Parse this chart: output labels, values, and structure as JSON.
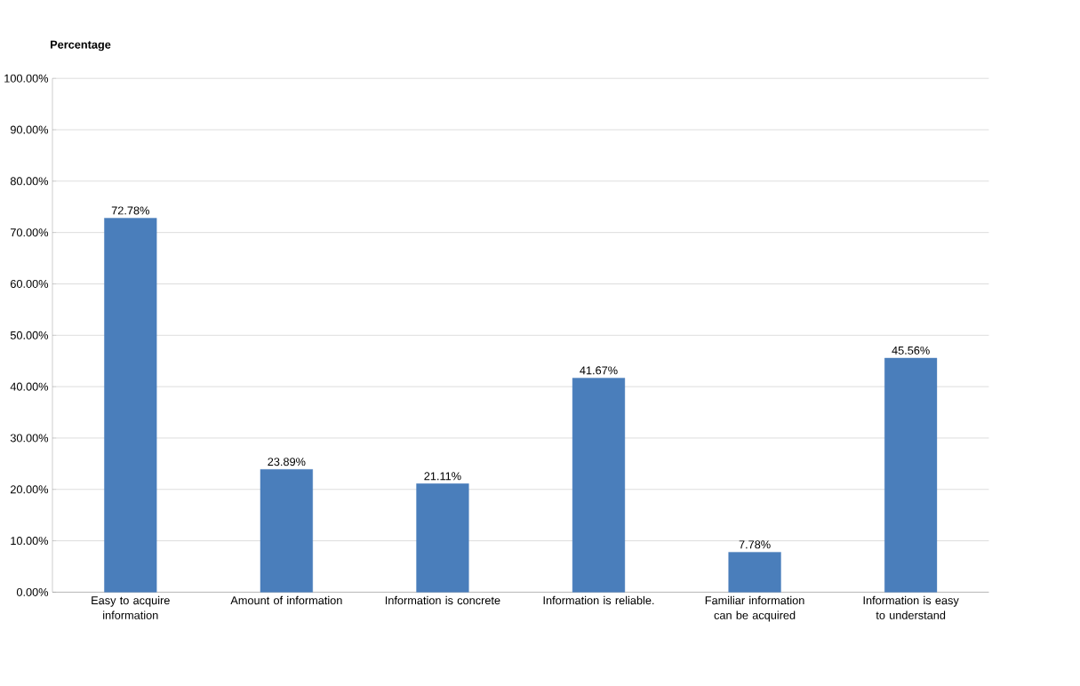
{
  "chart_data": {
    "type": "bar",
    "ylabel": "Percentage",
    "categories": [
      "Easy to acquire information",
      "Amount of information",
      "Information is concrete",
      "Information is reliable.",
      "Familiar information can be acquired",
      "Information is easy to understand"
    ],
    "values": [
      72.78,
      23.89,
      21.11,
      41.67,
      7.78,
      45.56
    ],
    "value_labels": [
      "72.78%",
      "23.89%",
      "21.11%",
      "41.67%",
      "7.78%",
      "45.56%"
    ],
    "color": "#4a7ebb",
    "ylim": [
      0,
      100
    ],
    "yticks": [
      {
        "value": 0,
        "label": "0.00%"
      },
      {
        "value": 10,
        "label": "10.00%"
      },
      {
        "value": 20,
        "label": "20.00%"
      },
      {
        "value": 30,
        "label": "30.00%"
      },
      {
        "value": 40,
        "label": "40.00%"
      },
      {
        "value": 50,
        "label": "50.00%"
      },
      {
        "value": 60,
        "label": "60.00%"
      },
      {
        "value": 70,
        "label": "70.00%"
      },
      {
        "value": 80,
        "label": "80.00%"
      },
      {
        "value": 90,
        "label": "90.00%"
      },
      {
        "value": 100,
        "label": "100.00%"
      }
    ],
    "grid": "y"
  }
}
